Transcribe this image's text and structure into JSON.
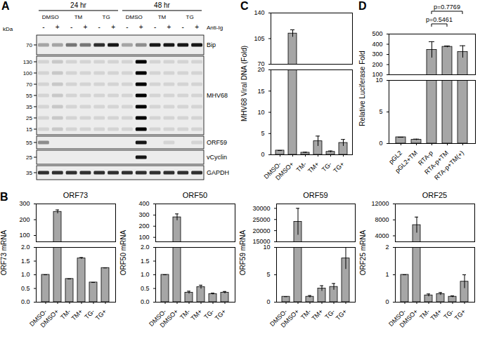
{
  "blot": {
    "panel": "A",
    "time_points": [
      "24 hr",
      "48 hr"
    ],
    "treatments": [
      "DMSO",
      "TM",
      "TG"
    ],
    "stimulus_label": "Anti-Ig",
    "stimulus": [
      "-",
      "+"
    ],
    "mw_unit": "kDa",
    "rows": [
      {
        "name": "Bip",
        "markers": [
          70
        ],
        "bands": [
          0.3,
          0.3,
          0.5,
          0.5,
          0.8,
          0.9,
          0.3,
          0.4,
          0.9,
          0.9,
          0.9,
          0.9
        ]
      },
      {
        "name": "MHV68",
        "markers": [
          130,
          100,
          70,
          55,
          35,
          25,
          15
        ],
        "bands": [
          0.1,
          0.15,
          0.1,
          0.1,
          0.1,
          0.1,
          0.1,
          1,
          0.1,
          0.1,
          0.1,
          0.1
        ]
      },
      {
        "name": "ORF59",
        "markers": [
          55
        ],
        "bands": [
          0.4,
          0,
          0,
          0,
          0,
          0,
          0,
          0.9,
          0,
          0.1,
          0,
          0.1
        ]
      },
      {
        "name": "vCyclin",
        "markers": [
          25
        ],
        "bands": [
          0,
          0,
          0,
          0,
          0,
          0,
          0,
          0.9,
          0,
          0,
          0,
          0
        ]
      },
      {
        "name": "GAPDH",
        "markers": [
          35
        ],
        "bands": [
          0.8,
          0.8,
          0.8,
          0.8,
          0.8,
          0.8,
          0.8,
          0.8,
          0.8,
          0.8,
          0.8,
          0.8
        ]
      }
    ]
  },
  "chart_data": [
    {
      "type": "bar",
      "panel": "B",
      "title": "ORF73",
      "y_label": "ORF73 mRNA",
      "color": "#a6a6a6",
      "categories": [
        "DMSO-",
        "DMSO+",
        "TM-",
        "TM+",
        "TG-",
        "TG+"
      ],
      "values": [
        1,
        250,
        0.85,
        1.6,
        0.72,
        1.25
      ],
      "errors": [
        0,
        12,
        0,
        0.03,
        0,
        0
      ],
      "segments": [
        {
          "ylim": [
            60,
            300
          ],
          "yticks": [
            100,
            200,
            300
          ]
        },
        {
          "ylim": [
            0,
            2
          ],
          "yticks": [
            {
              "value": 0,
              "label": "0.0"
            },
            {
              "value": 0.5,
              "label": "0.5"
            },
            {
              "value": 1,
              "label": "1.0"
            },
            {
              "value": 1.5,
              "label": "1.5"
            },
            {
              "value": 2,
              "label": "2.0"
            }
          ]
        }
      ]
    },
    {
      "type": "bar",
      "title": "ORF50",
      "y_label": "ORF50 mRNA",
      "color": "#a6a6a6",
      "categories": [
        "DMSO-",
        "DMSO+",
        "TM-",
        "TM+",
        "TG-",
        "TG+"
      ],
      "values": [
        1,
        280,
        0.35,
        0.55,
        0.3,
        0.35
      ],
      "errors": [
        0,
        30,
        0.05,
        0.07,
        0.03,
        0.04
      ],
      "segments": [
        {
          "ylim": [
            60,
            400
          ],
          "yticks": [
            100,
            200,
            300,
            400
          ]
        },
        {
          "ylim": [
            0,
            2
          ],
          "yticks": [
            {
              "value": 0,
              "label": "0.0"
            },
            {
              "value": 0.5,
              "label": "0.5"
            },
            {
              "value": 1,
              "label": "1.0"
            },
            {
              "value": 1.5,
              "label": "1.5"
            },
            {
              "value": 2,
              "label": "2.0"
            }
          ]
        }
      ]
    },
    {
      "type": "bar",
      "title": "ORF59",
      "y_label": "ORF59 mRNA",
      "color": "#a6a6a6",
      "categories": [
        "DMSO-",
        "DMSO+",
        "TM-",
        "TM+",
        "TG-",
        "TG+"
      ],
      "values": [
        1,
        24000,
        1,
        2.5,
        2.8,
        8
      ],
      "errors": [
        0,
        6000,
        0.2,
        0.5,
        0.6,
        2
      ],
      "segments": [
        {
          "ylim": [
            15000,
            32000
          ],
          "yticks": [
            15000,
            20000,
            25000,
            30000
          ]
        },
        {
          "ylim": [
            0,
            10
          ],
          "yticks": [
            0,
            5,
            10
          ]
        }
      ]
    },
    {
      "type": "bar",
      "title": "ORF25",
      "y_label": "ORF25 mRNA",
      "color": "#a6a6a6",
      "categories": [
        "DMSO-",
        "DMSO+",
        "TM-",
        "TM+",
        "TG-",
        "TG+"
      ],
      "values": [
        1,
        6700,
        0.25,
        0.3,
        0.2,
        0.75
      ],
      "errors": [
        0,
        2000,
        0.05,
        0.05,
        0.03,
        0.25
      ],
      "segments": [
        {
          "ylim": [
            2500,
            12000
          ],
          "yticks": [
            4000,
            8000,
            12000
          ]
        },
        {
          "ylim": [
            0,
            2
          ],
          "yticks": [
            0,
            1,
            2
          ]
        }
      ]
    },
    {
      "type": "bar",
      "panel": "C",
      "y_label": "MHV68 Viral DNA (Fold)",
      "color": "#a6a6a6",
      "categories": [
        "DMSO-",
        "DMSO+",
        "TM-",
        "TM+",
        "TG-",
        "TG+"
      ],
      "values": [
        1,
        112,
        0.5,
        3.2,
        0.7,
        2.8
      ],
      "errors": [
        0,
        5,
        0.1,
        1.2,
        0.2,
        0.8
      ],
      "segments": [
        {
          "ylim": [
            70,
            140
          ],
          "yticks": [
            70,
            105,
            140
          ]
        },
        {
          "ylim": [
            0,
            20
          ],
          "yticks": [
            0,
            5,
            10,
            15,
            20
          ]
        }
      ]
    },
    {
      "type": "bar",
      "panel": "D",
      "y_label": "Relative Luciferase Fold",
      "color": "#a6a6a6",
      "categories": [
        "pGL2",
        "pGL2+TM",
        "RTA-p",
        "RTA-p+TM",
        "RTA-p+TM(+)"
      ],
      "values": [
        1,
        0.6,
        345,
        375,
        325
      ],
      "errors": [
        0,
        0.1,
        80,
        8,
        60
      ],
      "annotations": [
        {
          "text": "p=0.7769",
          "from": "RTA-p",
          "to": "RTA-p+TM(+)"
        },
        {
          "text": "p=0.5461",
          "from": "RTA-p",
          "to": "RTA-p+TM"
        }
      ],
      "segments": [
        {
          "ylim": [
            100,
            500
          ],
          "yticks": [
            100,
            200,
            300,
            400,
            500
          ]
        },
        {
          "ylim": [
            0,
            10
          ],
          "yticks": [
            0,
            5,
            10
          ]
        }
      ]
    }
  ]
}
